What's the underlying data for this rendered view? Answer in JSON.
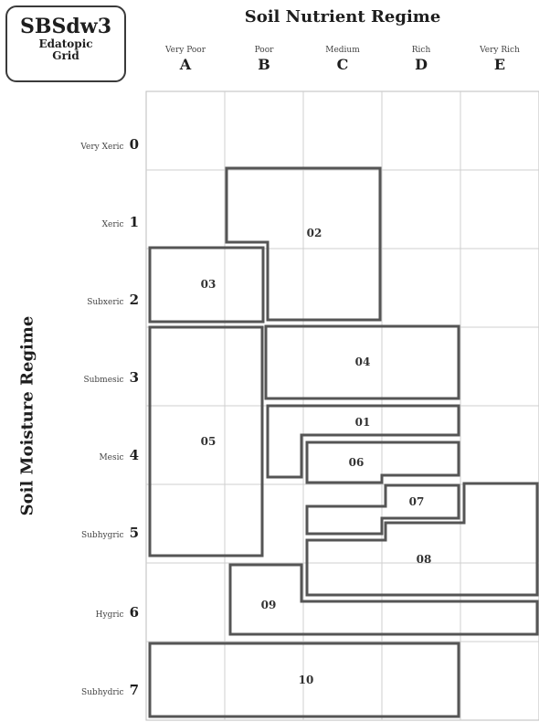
{
  "logo": {
    "title": "SBSdw3",
    "subtitle_line1": "Edatopic",
    "subtitle_line2": "Grid"
  },
  "title": "Soil Nutrient Regime",
  "y_axis_title": "Soil Moisture Regime",
  "columns": [
    {
      "name": "Very Poor",
      "letter": "A"
    },
    {
      "name": "Poor",
      "letter": "B"
    },
    {
      "name": "Medium",
      "letter": "C"
    },
    {
      "name": "Rich",
      "letter": "D"
    },
    {
      "name": "Very Rich",
      "letter": "E"
    }
  ],
  "rows": [
    {
      "name": "Very Xeric",
      "number": "0"
    },
    {
      "name": "Xeric",
      "number": "1"
    },
    {
      "name": "Subxeric",
      "number": "2"
    },
    {
      "name": "Submesic",
      "number": "3"
    },
    {
      "name": "Mesic",
      "number": "4"
    },
    {
      "name": "Subhygric",
      "number": "5"
    },
    {
      "name": "Hygric",
      "number": "6"
    },
    {
      "name": "Subhydric",
      "number": "7"
    }
  ],
  "site_units": [
    "02",
    "03",
    "04",
    "01",
    "05",
    "06",
    "07",
    "08",
    "09",
    "10"
  ]
}
